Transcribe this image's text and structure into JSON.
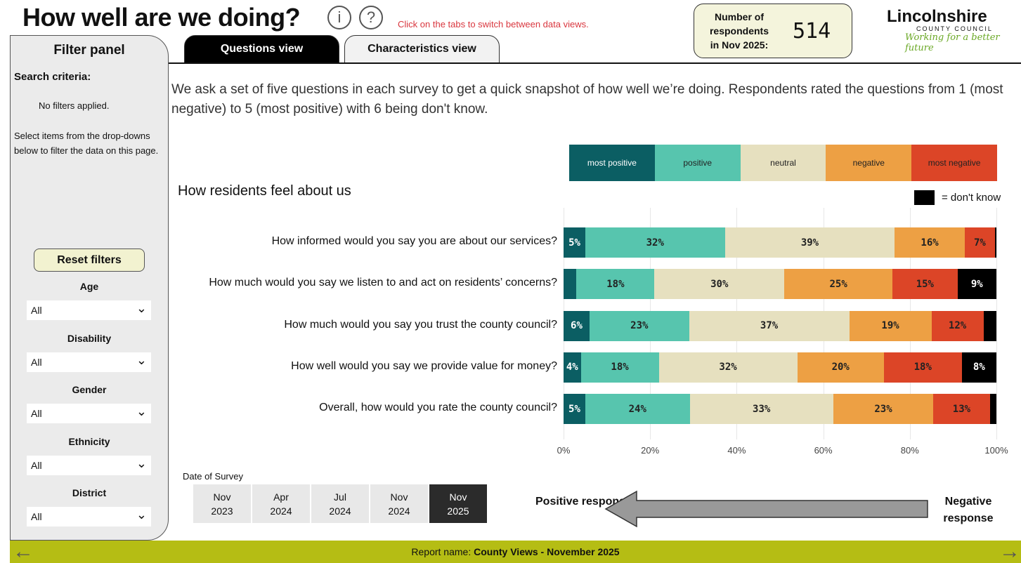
{
  "header": {
    "title": "How well are we doing?",
    "info_icon": "i",
    "help_icon": "?",
    "hint": "Click on the tabs to switch between data views.",
    "respondents_label": "Number of respondents in Nov 2025:",
    "respondents_count": "514",
    "logo": {
      "name": "Lincolnshire",
      "sub": "COUNTY COUNCIL",
      "tagline": "Working for a better future"
    }
  },
  "tabs": [
    {
      "label": "Questions view",
      "active": true
    },
    {
      "label": "Characteristics view",
      "active": false
    }
  ],
  "filter_panel": {
    "title": "Filter panel",
    "search_criteria": "Search criteria:",
    "no_filters": "No filters applied.",
    "instructions": "Select items from the drop-downs below to filter the data on this page.",
    "reset": "Reset filters",
    "filters": [
      {
        "label": "Age",
        "value": "All"
      },
      {
        "label": "Disability",
        "value": "All"
      },
      {
        "label": "Gender",
        "value": "All"
      },
      {
        "label": "Ethnicity",
        "value": "All"
      },
      {
        "label": "District",
        "value": "All"
      }
    ]
  },
  "intro": "We ask a set of five questions in each survey to get a quick snapshot of how well we’re doing. Respondents rated the questions from 1 (most negative) to 5 (most positive) with 6 being don't know.",
  "chart_data": {
    "type": "bar",
    "orientation": "horizontal",
    "stacked": "100%",
    "title": "How residents feel about us",
    "categories": [
      "How informed would you say you are about our services?",
      "How much would you say we listen to and act on residents’ concerns?",
      "How much would you say you trust the county council?",
      "How well would you say we provide value for money?",
      "Overall, how would you rate the county council?"
    ],
    "series": [
      {
        "name": "most positive",
        "color": "#0b5e63",
        "text": "#fff",
        "values": [
          5,
          3,
          6,
          4,
          5
        ],
        "labels": [
          "5%",
          "",
          "6%",
          "4%",
          "5%"
        ]
      },
      {
        "name": "positive",
        "color": "#57c5ae",
        "text": "#222",
        "values": [
          32,
          18,
          23,
          18,
          24
        ],
        "labels": [
          "32%",
          "18%",
          "23%",
          "18%",
          "24%"
        ]
      },
      {
        "name": "neutral",
        "color": "#e6e0bf",
        "text": "#222",
        "values": [
          39,
          30,
          37,
          32,
          33
        ],
        "labels": [
          "39%",
          "30%",
          "37%",
          "32%",
          "33%"
        ]
      },
      {
        "name": "negative",
        "color": "#eda044",
        "text": "#222",
        "values": [
          16,
          25,
          19,
          20,
          23
        ],
        "labels": [
          "16%",
          "25%",
          "19%",
          "20%",
          "23%"
        ]
      },
      {
        "name": "most negative",
        "color": "#dc4527",
        "text": "#222",
        "values": [
          7,
          15,
          12,
          18,
          13
        ],
        "labels": [
          "7%",
          "15%",
          "12%",
          "18%",
          "13%"
        ]
      },
      {
        "name": "don't know",
        "color": "#000000",
        "text": "#fff",
        "values": [
          0.3,
          9,
          3,
          8,
          1.5
        ],
        "labels": [
          "",
          "9%",
          "",
          "8%",
          ""
        ]
      }
    ],
    "xticks": [
      "0%",
      "20%",
      "40%",
      "60%",
      "80%",
      "100%"
    ],
    "xlim": [
      0,
      100
    ],
    "dont_know_legend": "= don't know"
  },
  "date_filter": {
    "label": "Date of Survey",
    "options": [
      {
        "label": "Nov 2023"
      },
      {
        "label": "Apr 2024"
      },
      {
        "label": "Jul 2024"
      },
      {
        "label": "Nov 2024"
      },
      {
        "label": "Nov 2025",
        "selected": true
      }
    ]
  },
  "direction": {
    "positive": "Positive response",
    "negative": "Negative response"
  },
  "footer": {
    "prefix": "Report name: ",
    "name": "County Views - November 2025"
  },
  "colors": {
    "footer": "#b5bd14",
    "accent_red": "#d9363e"
  }
}
